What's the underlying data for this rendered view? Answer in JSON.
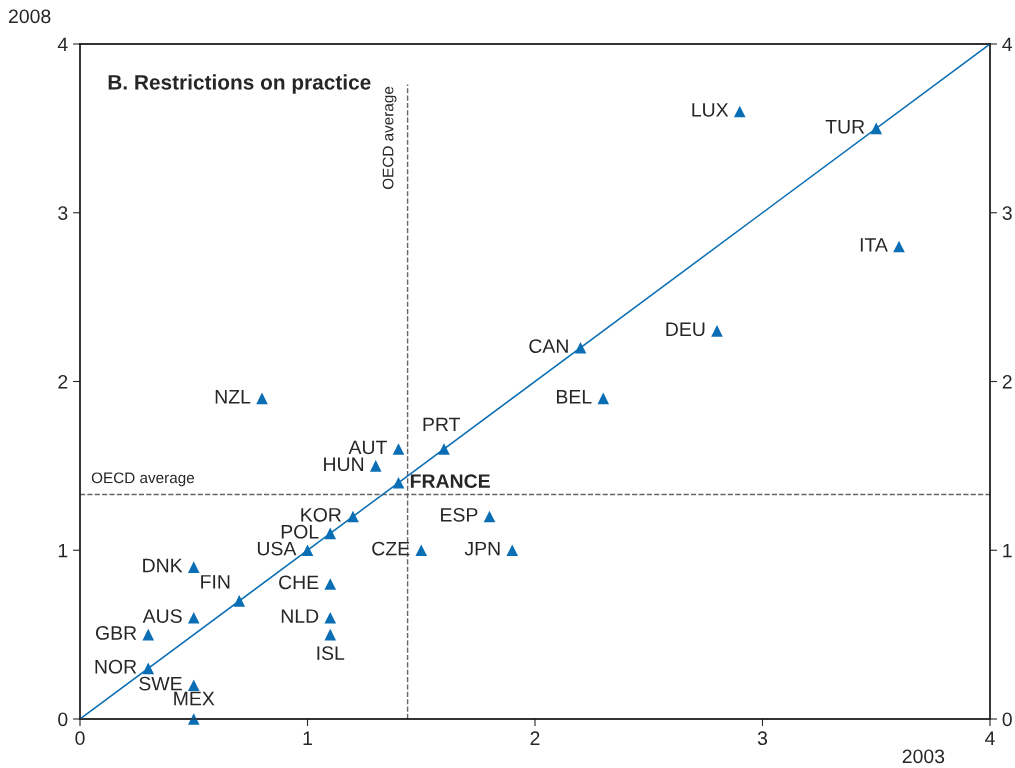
{
  "chart_data": {
    "type": "scatter",
    "title": "B. Restrictions on practice",
    "xlabel": "2003",
    "ylabel": "2008",
    "xlim": [
      0,
      4
    ],
    "xticks": [
      0,
      1,
      2,
      3,
      4
    ],
    "ylim": [
      0,
      4
    ],
    "yticks": [
      0,
      1,
      2,
      3,
      4
    ],
    "y2lim": [
      0,
      4
    ],
    "y2ticks": [
      0,
      1,
      2,
      3,
      4
    ],
    "grid": false,
    "legend": false,
    "series": [
      {
        "marker": "triangle",
        "color": "#0a6eb4",
        "x": [
          2.9,
          3.5,
          3.6,
          2.8,
          2.2,
          2.3,
          0.8,
          1.4,
          1.6,
          1.3,
          1.4,
          1.2,
          1.8,
          1.1,
          1.0,
          1.5,
          1.9,
          0.5,
          1.1,
          0.7,
          0.5,
          1.1,
          0.3,
          1.1,
          0.3,
          0.5,
          0.5
        ],
        "values": [
          3.6,
          3.5,
          2.8,
          2.3,
          2.2,
          1.9,
          1.9,
          1.6,
          1.6,
          1.5,
          1.4,
          1.2,
          1.2,
          1.1,
          1.0,
          1.0,
          1.0,
          0.9,
          0.8,
          0.7,
          0.6,
          0.6,
          0.5,
          0.5,
          0.3,
          0.2,
          0.0
        ]
      },
      {
        "type": "line",
        "color": "#0a6eb4",
        "x": [
          0,
          4
        ],
        "values": [
          0,
          4
        ],
        "line_style": "solid",
        "marker": "none"
      }
    ],
    "ref_lines": [
      {
        "axis": "x",
        "value": 1.44,
        "label": "OECD average",
        "color": "#666666",
        "line_style": "dashed"
      },
      {
        "axis": "y",
        "value": 1.33,
        "label": "OECD average",
        "color": "#666666",
        "line_style": "dashed"
      }
    ],
    "annotations": [
      {
        "text": "LUX",
        "x": 2.9,
        "y": 3.6
      },
      {
        "text": "TUR",
        "x": 3.5,
        "y": 3.5
      },
      {
        "text": "ITA",
        "x": 3.6,
        "y": 2.8
      },
      {
        "text": "DEU",
        "x": 2.8,
        "y": 2.3
      },
      {
        "text": "CAN",
        "x": 2.2,
        "y": 2.2
      },
      {
        "text": "BEL",
        "x": 2.3,
        "y": 1.9
      },
      {
        "text": "NZL",
        "x": 0.8,
        "y": 1.9
      },
      {
        "text": "AUT",
        "x": 1.4,
        "y": 1.6
      },
      {
        "text": "PRT",
        "x": 1.6,
        "y": 1.6
      },
      {
        "text": "HUN",
        "x": 1.3,
        "y": 1.5
      },
      {
        "text": "FRANCE",
        "x": 1.4,
        "y": 1.4
      },
      {
        "text": "KOR",
        "x": 1.2,
        "y": 1.2
      },
      {
        "text": "ESP",
        "x": 1.8,
        "y": 1.2
      },
      {
        "text": "POL",
        "x": 1.1,
        "y": 1.1
      },
      {
        "text": "USA",
        "x": 1.0,
        "y": 1.0
      },
      {
        "text": "CZE",
        "x": 1.5,
        "y": 1.0
      },
      {
        "text": "JPN",
        "x": 1.9,
        "y": 1.0
      },
      {
        "text": "DNK",
        "x": 0.5,
        "y": 0.9
      },
      {
        "text": "CHE",
        "x": 1.1,
        "y": 0.8
      },
      {
        "text": "FIN",
        "x": 0.7,
        "y": 0.7
      },
      {
        "text": "AUS",
        "x": 0.5,
        "y": 0.6
      },
      {
        "text": "NLD",
        "x": 1.1,
        "y": 0.6
      },
      {
        "text": "GBR",
        "x": 0.3,
        "y": 0.5
      },
      {
        "text": "ISL",
        "x": 1.1,
        "y": 0.5
      },
      {
        "text": "NOR",
        "x": 0.3,
        "y": 0.3
      },
      {
        "text": "SWE",
        "x": 0.5,
        "y": 0.2
      },
      {
        "text": "MEX",
        "x": 0.5,
        "y": 0.0
      }
    ]
  }
}
